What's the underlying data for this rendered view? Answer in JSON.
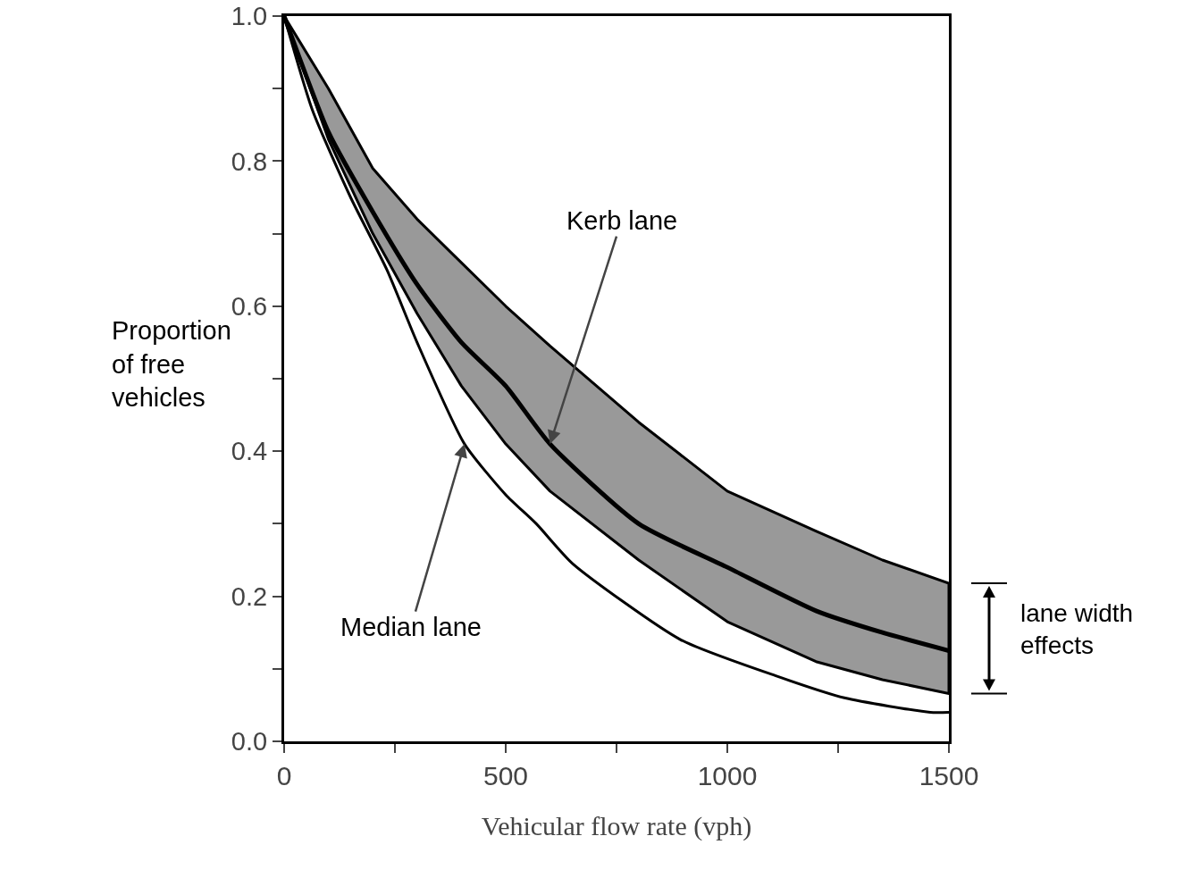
{
  "chart_data": {
    "type": "line",
    "xlabel": "Vehicular flow rate (vph)",
    "ylabel": "Proportion\nof free\nvehicles",
    "xlim": [
      0,
      1500
    ],
    "ylim": [
      0,
      1
    ],
    "xticks": [
      0,
      {
        "value": 250,
        "label": null
      },
      500,
      {
        "value": 750,
        "label": null
      },
      1000,
      {
        "value": 1250,
        "label": null
      },
      1500
    ],
    "yticks": [
      "0.0",
      {
        "value": 0.1,
        "label": null
      },
      {
        "value": 0.2,
        "label": "0.2"
      },
      {
        "value": 0.3,
        "label": null
      },
      {
        "value": 0.4,
        "label": "0.4"
      },
      {
        "value": 0.5,
        "label": null
      },
      {
        "value": 0.6,
        "label": "0.6"
      },
      {
        "value": 0.7,
        "label": null
      },
      {
        "value": 0.8,
        "label": "0.8"
      },
      {
        "value": 0.9,
        "label": null
      },
      {
        "value": 1,
        "label": "1.0"
      }
    ],
    "grid": false,
    "marker": "none",
    "line_style": "solid",
    "series": [
      {
        "color": "#000000",
        "x": [
          0,
          100,
          200,
          300,
          400,
          500,
          600,
          800,
          1000,
          1200,
          1350,
          1500
        ],
        "values": [
          1,
          0.84,
          0.73,
          0.63,
          0.55,
          0.49,
          0.41,
          0.3,
          0.24,
          0.18,
          0.15,
          0.125
        ],
        "lower": [
          1,
          0.83,
          0.7,
          0.59,
          0.49,
          0.41,
          0.345,
          0.25,
          0.165,
          0.11,
          0.085,
          0.066
        ],
        "upper": [
          1,
          0.9,
          0.79,
          0.72,
          0.66,
          0.6,
          0.545,
          0.44,
          0.345,
          0.29,
          0.25,
          0.218
        ]
      },
      {
        "color": "#000000",
        "x": [
          0,
          64,
          150,
          232,
          300,
          407,
          500,
          569,
          651,
          895,
          1111,
          1264,
          1458,
          1500
        ],
        "values": [
          1,
          0.87,
          0.75,
          0.65,
          0.55,
          0.41,
          0.34,
          0.3,
          0.245,
          0.14,
          0.09,
          0.06,
          0.04,
          0.04
        ]
      }
    ],
    "annotations": [
      {
        "text": "Kerb lane",
        "x": 600,
        "y": 0.41
      },
      {
        "text": "Median lane",
        "x": 407,
        "y": 0.41
      },
      "lane width effects"
    ]
  }
}
